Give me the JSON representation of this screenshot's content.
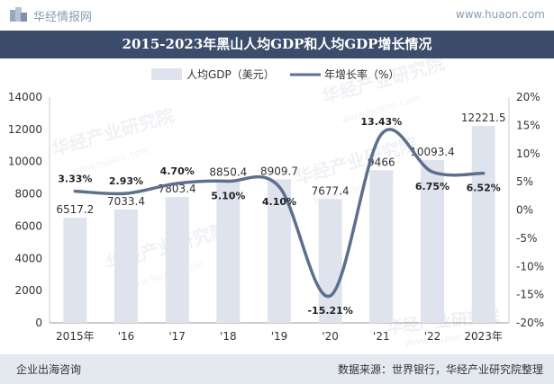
{
  "brand": {
    "name": "华经情报网",
    "url": "www.huaon.com"
  },
  "watermark": {
    "text": "华经产业研究院",
    "url": "www.huaon.com"
  },
  "footer": {
    "left": "企业出海咨询",
    "right": "数据来源：世界银行，华经产业研究院整理"
  },
  "colors": {
    "title_bg": "#3c4d6b",
    "bar": "#dfe3ee",
    "line": "#5c6f8c",
    "footer_bg": "#e4e8ef"
  },
  "chart_data": {
    "type": "bar+line",
    "title": "2015-2023年黑山人均GDP和人均GDP增长情况",
    "categories": [
      "2015年",
      "'16",
      "'17",
      "'18",
      "'19",
      "'20",
      "'21",
      "'22",
      "2023年"
    ],
    "series": [
      {
        "name": "人均GDP（美元）",
        "type": "bar",
        "axis": "left",
        "values": [
          6517.2,
          7033.4,
          7803.4,
          8850.4,
          8909.7,
          7677.4,
          9466,
          10093.4,
          12221.5
        ],
        "labels": [
          "6517.2",
          "7033.4",
          "7803.4",
          "8850.4",
          "8909.7",
          "7677.4",
          "9466",
          "10093.4",
          "12221.5"
        ]
      },
      {
        "name": "年增长率（%）",
        "type": "line",
        "axis": "right",
        "smooth": true,
        "values": [
          3.33,
          2.93,
          4.7,
          5.1,
          4.1,
          -15.21,
          13.43,
          6.75,
          6.52
        ],
        "labels": [
          "3.33%",
          "2.93%",
          "4.70%",
          "5.10%",
          "4.10%",
          "-15.21%",
          "13.43%",
          "6.75%",
          "6.52%"
        ]
      }
    ],
    "y_left": {
      "ylim": [
        0,
        14000
      ],
      "ticks": [
        "0",
        "2000",
        "4000",
        "6000",
        "8000",
        "10000",
        "12000",
        "14000"
      ]
    },
    "y_right": {
      "ylim": [
        -20,
        20
      ],
      "ticks": [
        "-20%",
        "-15%",
        "-10%",
        "-5%",
        "0%",
        "5%",
        "10%",
        "15%",
        "20%"
      ]
    },
    "legend": "top-center",
    "grid": false
  }
}
